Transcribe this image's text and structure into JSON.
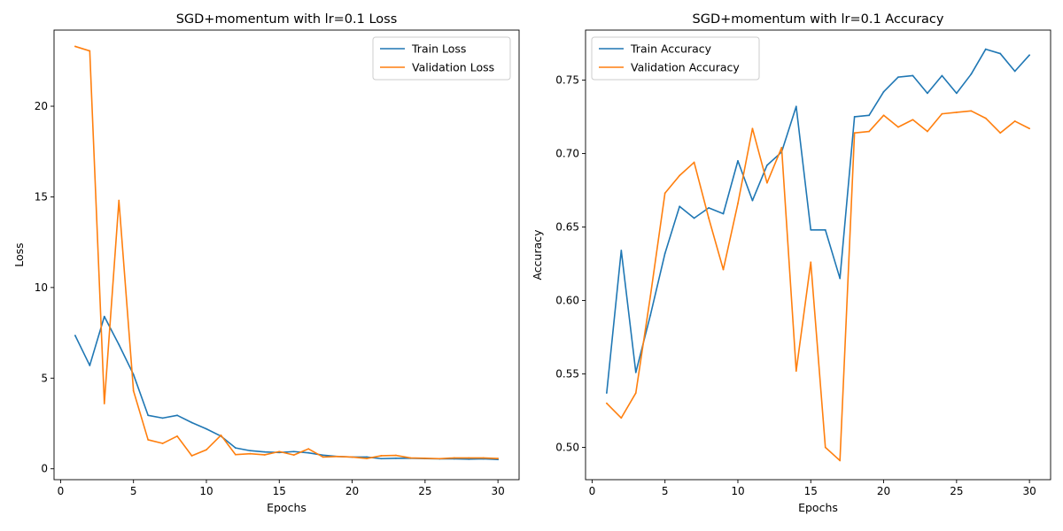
{
  "chart_data": [
    {
      "type": "line",
      "title": "SGD+momentum with lr=0.1 Loss",
      "xlabel": "Epochs",
      "ylabel": "Loss",
      "xlim": [
        -0.45,
        31.45
      ],
      "ylim": [
        -0.6,
        24.2
      ],
      "xticks": [
        0,
        5,
        10,
        15,
        20,
        25,
        30
      ],
      "yticks": [
        0,
        5,
        10,
        15,
        20
      ],
      "ytick_labels": [
        "0",
        "5",
        "10",
        "15",
        "20"
      ],
      "grid": false,
      "legend_position": "top-right",
      "x": [
        1,
        2,
        3,
        4,
        5,
        6,
        7,
        8,
        9,
        10,
        11,
        12,
        13,
        14,
        15,
        16,
        17,
        18,
        19,
        20,
        21,
        22,
        23,
        24,
        25,
        26,
        27,
        28,
        29,
        30
      ],
      "series": [
        {
          "name": "Train Loss",
          "color": "#1f77b4",
          "values": [
            7.35,
            5.7,
            8.4,
            6.85,
            5.2,
            2.95,
            2.8,
            2.95,
            2.55,
            2.2,
            1.8,
            1.15,
            1.0,
            0.93,
            0.9,
            0.95,
            0.88,
            0.75,
            0.68,
            0.65,
            0.65,
            0.56,
            0.58,
            0.58,
            0.56,
            0.55,
            0.55,
            0.53,
            0.55,
            0.51
          ]
        },
        {
          "name": "Validation Loss",
          "color": "#ff7f0e",
          "values": [
            23.3,
            23.05,
            3.6,
            14.8,
            4.3,
            1.6,
            1.4,
            1.8,
            0.72,
            1.05,
            1.85,
            0.78,
            0.83,
            0.77,
            0.95,
            0.76,
            1.1,
            0.65,
            0.68,
            0.65,
            0.57,
            0.72,
            0.74,
            0.6,
            0.58,
            0.56,
            0.6,
            0.6,
            0.6,
            0.57
          ]
        }
      ]
    },
    {
      "type": "line",
      "title": "SGD+momentum with lr=0.1 Accuracy",
      "xlabel": "Epochs",
      "ylabel": "Accuracy",
      "xlim": [
        -0.45,
        31.45
      ],
      "ylim": [
        0.478,
        0.784
      ],
      "xticks": [
        0,
        5,
        10,
        15,
        20,
        25,
        30
      ],
      "yticks": [
        0.5,
        0.55,
        0.6,
        0.65,
        0.7,
        0.75
      ],
      "ytick_labels": [
        "0.50",
        "0.55",
        "0.60",
        "0.65",
        "0.70",
        "0.75"
      ],
      "grid": false,
      "legend_position": "top-left",
      "x": [
        1,
        2,
        3,
        4,
        5,
        6,
        7,
        8,
        9,
        10,
        11,
        12,
        13,
        14,
        15,
        16,
        17,
        18,
        19,
        20,
        21,
        22,
        23,
        24,
        25,
        26,
        27,
        28,
        29,
        30
      ],
      "series": [
        {
          "name": "Train Accuracy",
          "color": "#1f77b4",
          "values": [
            0.537,
            0.634,
            0.551,
            0.59,
            0.632,
            0.664,
            0.656,
            0.663,
            0.659,
            0.695,
            0.668,
            0.692,
            0.701,
            0.732,
            0.648,
            0.648,
            0.615,
            0.725,
            0.726,
            0.742,
            0.752,
            0.753,
            0.741,
            0.753,
            0.741,
            0.754,
            0.771,
            0.768,
            0.756,
            0.767
          ]
        },
        {
          "name": "Validation Accuracy",
          "color": "#ff7f0e",
          "values": [
            0.53,
            0.52,
            0.537,
            0.603,
            0.673,
            0.685,
            0.694,
            0.656,
            0.621,
            0.666,
            0.717,
            0.68,
            0.704,
            0.552,
            0.626,
            0.5,
            0.491,
            0.714,
            0.715,
            0.726,
            0.718,
            0.723,
            0.715,
            0.727,
            0.728,
            0.729,
            0.724,
            0.714,
            0.722,
            0.717
          ]
        }
      ]
    }
  ]
}
